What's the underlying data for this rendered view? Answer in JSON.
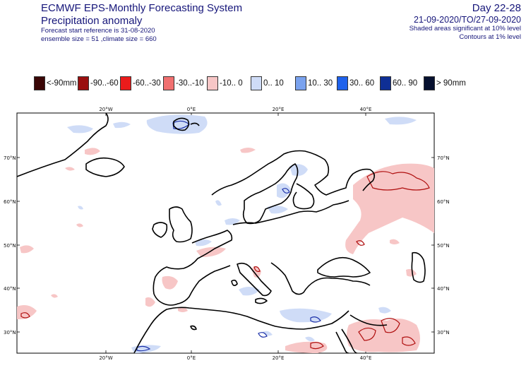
{
  "header": {
    "system_title": "ECMWF EPS-Monthly Forecasting System",
    "product_title": "Precipitation anomaly",
    "forecast_start": "Forecast start reference is 31-08-2020",
    "ensemble_info": "ensemble size = 51  ,climate size = 660",
    "day_range": "Day 22-28",
    "date_range": "21-09-2020/TO/27-09-2020",
    "significance_note": "Shaded areas significant at 10% level",
    "contour_note": "Contours at 1% level"
  },
  "legend": [
    {
      "label": "<-90mm",
      "color": "#3a0606"
    },
    {
      "label": "-90..-60",
      "color": "#9a0f0f"
    },
    {
      "label": "-60..-30",
      "color": "#ea1b1b"
    },
    {
      "label": "-30..-10",
      "color": "#f07070"
    },
    {
      "label": "-10..  0",
      "color": "#f7c6c6"
    },
    {
      "label": "0.. 10",
      "color": "#cfdcf7"
    },
    {
      "label": "10.. 30",
      "color": "#7aa2ee"
    },
    {
      "label": "30.. 60",
      "color": "#1f62ec"
    },
    {
      "label": "60.. 90",
      "color": "#0f2f95"
    },
    {
      "label": "> 90mm",
      "color": "#06102f"
    }
  ],
  "map": {
    "lon_labels": [
      "20°W",
      "0°E",
      "20°E",
      "40°E"
    ],
    "lat_labels": [
      "70°N",
      "60°N",
      "50°N",
      "40°N",
      "30°N"
    ],
    "colors": {
      "coast": "#000000",
      "dry_light": "#f7c6c6",
      "wet_light": "#cfdcf7",
      "dry_contour": "#b01010",
      "wet_contour": "#1a2fa8"
    }
  }
}
